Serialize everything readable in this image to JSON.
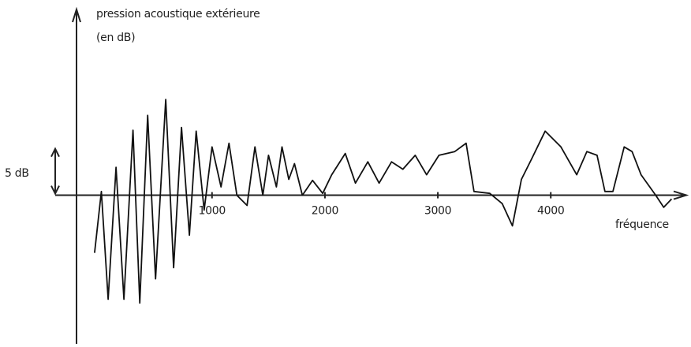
{
  "chart_data": {
    "type": "line",
    "ylabel": "pression acoustique extérieure",
    "ylabel_unit": "(en dB)",
    "xlabel": "fréquence",
    "scale_bar": {
      "label": "5 dB",
      "value": 5
    },
    "xlim": [
      -200,
      5200
    ],
    "ylim": [
      -16,
      20
    ],
    "xticks": [
      1000,
      2000,
      3000,
      4000
    ],
    "color": "#111111",
    "x": [
      -40,
      20,
      80,
      150,
      220,
      300,
      360,
      430,
      500,
      590,
      660,
      730,
      800,
      860,
      930,
      1000,
      1080,
      1150,
      1220,
      1310,
      1380,
      1450,
      1500,
      1570,
      1620,
      1680,
      1730,
      1800,
      1890,
      1980,
      2060,
      2180,
      2270,
      2380,
      2480,
      2590,
      2690,
      2800,
      2900,
      3010,
      3150,
      3250,
      3320,
      3460,
      3570,
      3660,
      3740,
      3830,
      3950,
      4090,
      4230,
      4320,
      4410,
      4480,
      4550,
      4650,
      4720,
      4800,
      4930,
      5000,
      5070
    ],
    "values": [
      -6.2,
      0.4,
      -11.2,
      3.0,
      -11.2,
      7.0,
      -11.6,
      8.6,
      -9.0,
      10.3,
      -7.8,
      7.3,
      -4.3,
      6.9,
      -1.6,
      5.2,
      0.9,
      5.6,
      0,
      -1.1,
      5.2,
      0,
      4.3,
      0.9,
      5.2,
      1.7,
      3.4,
      0,
      1.6,
      0.2,
      2.2,
      4.5,
      1.3,
      3.6,
      1.3,
      3.6,
      2.8,
      4.3,
      2.2,
      4.3,
      4.7,
      5.6,
      0.4,
      0.2,
      -0.9,
      -3.3,
      1.7,
      3.9,
      6.9,
      5.2,
      2.2,
      4.7,
      4.3,
      0.4,
      0.4,
      5.2,
      4.7,
      2.2,
      0,
      -1.3,
      -0.4
    ]
  }
}
